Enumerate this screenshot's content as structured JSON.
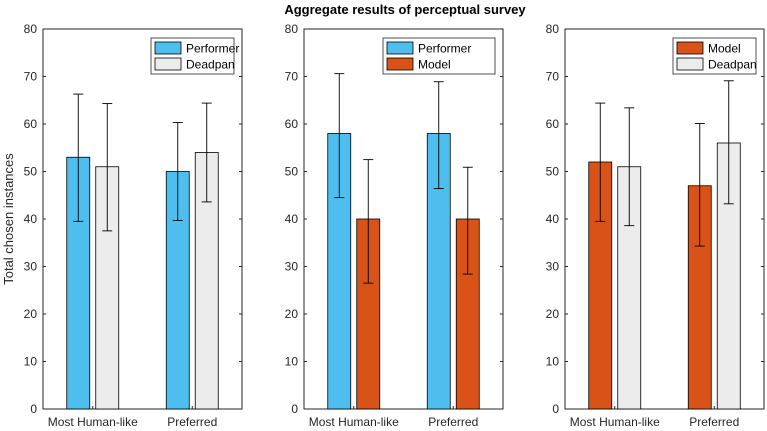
{
  "figure": {
    "title": "Aggregate results of perceptual survey"
  },
  "colors": {
    "performer": "#4dbeee",
    "model": "#d95319",
    "deadpan": "#ececec",
    "axis": "#262626",
    "error_bar": "#000000"
  },
  "chart_data": [
    {
      "type": "bar",
      "title": "",
      "xlabel": "",
      "ylabel": "Total chosen instances",
      "ylim": [
        0,
        80
      ],
      "yticks": [
        0,
        10,
        20,
        30,
        40,
        50,
        60,
        70,
        80
      ],
      "grid": false,
      "legend_position": "top-right",
      "categories": [
        "Most Human-like",
        "Preferred"
      ],
      "series": [
        {
          "name": "Performer",
          "color": "#4dbeee",
          "values": [
            53,
            50
          ],
          "err_low": [
            39.5,
            39.7
          ],
          "err_high": [
            66.3,
            60.3
          ]
        },
        {
          "name": "Deadpan",
          "color": "#ececec",
          "values": [
            51,
            54
          ],
          "err_low": [
            37.5,
            43.6
          ],
          "err_high": [
            64.3,
            64.4
          ]
        }
      ]
    },
    {
      "type": "bar",
      "title": "",
      "xlabel": "",
      "ylabel": "",
      "ylim": [
        0,
        80
      ],
      "yticks": [
        0,
        10,
        20,
        30,
        40,
        50,
        60,
        70,
        80
      ],
      "grid": false,
      "legend_position": "top-right",
      "categories": [
        "Most Human-like",
        "Preferred"
      ],
      "series": [
        {
          "name": "Performer",
          "color": "#4dbeee",
          "values": [
            58,
            58
          ],
          "err_low": [
            44.5,
            46.4
          ],
          "err_high": [
            70.6,
            68.9
          ]
        },
        {
          "name": "Model",
          "color": "#d95319",
          "values": [
            40,
            40
          ],
          "err_low": [
            26.5,
            28.4
          ],
          "err_high": [
            52.5,
            50.9
          ]
        }
      ]
    },
    {
      "type": "bar",
      "title": "",
      "xlabel": "",
      "ylabel": "",
      "ylim": [
        0,
        80
      ],
      "yticks": [
        0,
        10,
        20,
        30,
        40,
        50,
        60,
        70,
        80
      ],
      "grid": false,
      "legend_position": "top-right",
      "categories": [
        "Most Human-like",
        "Preferred"
      ],
      "series": [
        {
          "name": "Model",
          "color": "#d95319",
          "values": [
            52,
            47
          ],
          "err_low": [
            39.5,
            34.3
          ],
          "err_high": [
            64.4,
            60.1
          ]
        },
        {
          "name": "Deadpan",
          "color": "#ececec",
          "values": [
            51,
            56
          ],
          "err_low": [
            38.6,
            43.2
          ],
          "err_high": [
            63.4,
            69.1
          ]
        }
      ]
    }
  ]
}
